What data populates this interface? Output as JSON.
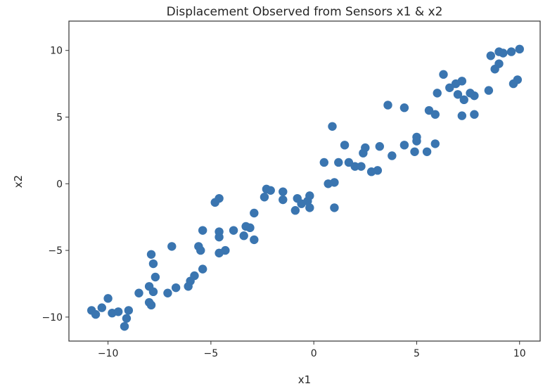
{
  "chart_data": {
    "type": "scatter",
    "title": "Displacement Observed from Sensors x1 & x2",
    "xlabel": "x1",
    "ylabel": "x2",
    "xlim": [
      -11.9,
      11.0
    ],
    "ylim": [
      -11.8,
      12.2
    ],
    "xticks": [
      -10,
      -5,
      0,
      5,
      10
    ],
    "yticks": [
      -10,
      -5,
      0,
      5,
      10
    ],
    "xtick_labels": [
      "−10",
      "−5",
      "0",
      "5",
      "10"
    ],
    "ytick_labels": [
      "−10",
      "−5",
      "0",
      "5",
      "10"
    ],
    "grid": false,
    "color": "#3a75b0",
    "points": [
      [
        10.0,
        10.1
      ],
      [
        9.6,
        9.9
      ],
      [
        9.2,
        9.8
      ],
      [
        9.0,
        9.9
      ],
      [
        8.6,
        9.6
      ],
      [
        9.0,
        9.0
      ],
      [
        8.8,
        8.6
      ],
      [
        9.9,
        7.8
      ],
      [
        9.7,
        7.5
      ],
      [
        8.5,
        7.0
      ],
      [
        7.8,
        6.6
      ],
      [
        7.6,
        6.8
      ],
      [
        7.8,
        5.2
      ],
      [
        7.2,
        5.1
      ],
      [
        7.2,
        7.7
      ],
      [
        6.9,
        7.5
      ],
      [
        6.6,
        7.2
      ],
      [
        6.3,
        8.2
      ],
      [
        7.0,
        6.7
      ],
      [
        7.3,
        6.3
      ],
      [
        6.0,
        6.8
      ],
      [
        5.6,
        5.5
      ],
      [
        5.9,
        5.2
      ],
      [
        5.5,
        2.4
      ],
      [
        5.9,
        3.0
      ],
      [
        5.0,
        3.5
      ],
      [
        5.0,
        3.2
      ],
      [
        4.9,
        2.4
      ],
      [
        4.4,
        5.7
      ],
      [
        3.6,
        5.9
      ],
      [
        4.4,
        2.9
      ],
      [
        3.8,
        2.1
      ],
      [
        3.2,
        2.8
      ],
      [
        3.1,
        1.0
      ],
      [
        2.8,
        0.9
      ],
      [
        2.5,
        2.7
      ],
      [
        2.4,
        2.3
      ],
      [
        2.3,
        1.3
      ],
      [
        2.0,
        1.3
      ],
      [
        1.7,
        1.6
      ],
      [
        1.5,
        2.9
      ],
      [
        1.2,
        1.6
      ],
      [
        0.9,
        4.3
      ],
      [
        1.0,
        0.1
      ],
      [
        0.7,
        0.0
      ],
      [
        0.5,
        1.6
      ],
      [
        1.0,
        -1.8
      ],
      [
        -0.2,
        -1.8
      ],
      [
        -0.3,
        -1.3
      ],
      [
        -0.6,
        -1.5
      ],
      [
        -0.9,
        -2.0
      ],
      [
        -0.8,
        -1.1
      ],
      [
        -0.2,
        -0.9
      ],
      [
        -1.5,
        -0.6
      ],
      [
        -1.5,
        -1.2
      ],
      [
        -2.1,
        -0.5
      ],
      [
        -2.3,
        -0.4
      ],
      [
        -2.4,
        -1.0
      ],
      [
        -2.9,
        -2.2
      ],
      [
        -3.1,
        -3.3
      ],
      [
        -3.3,
        -3.2
      ],
      [
        -3.4,
        -3.9
      ],
      [
        -2.9,
        -4.2
      ],
      [
        -3.9,
        -3.5
      ],
      [
        -4.6,
        -1.1
      ],
      [
        -4.8,
        -1.4
      ],
      [
        -4.6,
        -3.6
      ],
      [
        -4.6,
        -4.0
      ],
      [
        -4.6,
        -5.2
      ],
      [
        -4.3,
        -5.0
      ],
      [
        -5.4,
        -3.5
      ],
      [
        -5.6,
        -4.7
      ],
      [
        -5.5,
        -5.0
      ],
      [
        -5.4,
        -6.4
      ],
      [
        -6.0,
        -7.3
      ],
      [
        -5.8,
        -6.9
      ],
      [
        -6.1,
        -7.7
      ],
      [
        -6.9,
        -4.7
      ],
      [
        -6.7,
        -7.8
      ],
      [
        -7.1,
        -8.2
      ],
      [
        -7.7,
        -7.0
      ],
      [
        -7.9,
        -5.3
      ],
      [
        -7.8,
        -6.0
      ],
      [
        -8.0,
        -7.7
      ],
      [
        -7.8,
        -8.1
      ],
      [
        -8.5,
        -8.2
      ],
      [
        -8.0,
        -8.9
      ],
      [
        -7.9,
        -9.1
      ],
      [
        -10.0,
        -8.6
      ],
      [
        -10.3,
        -9.3
      ],
      [
        -10.8,
        -9.5
      ],
      [
        -10.6,
        -9.8
      ],
      [
        -9.8,
        -9.7
      ],
      [
        -9.5,
        -9.6
      ],
      [
        -9.0,
        -9.5
      ],
      [
        -9.1,
        -10.1
      ],
      [
        -9.2,
        -10.7
      ]
    ]
  }
}
